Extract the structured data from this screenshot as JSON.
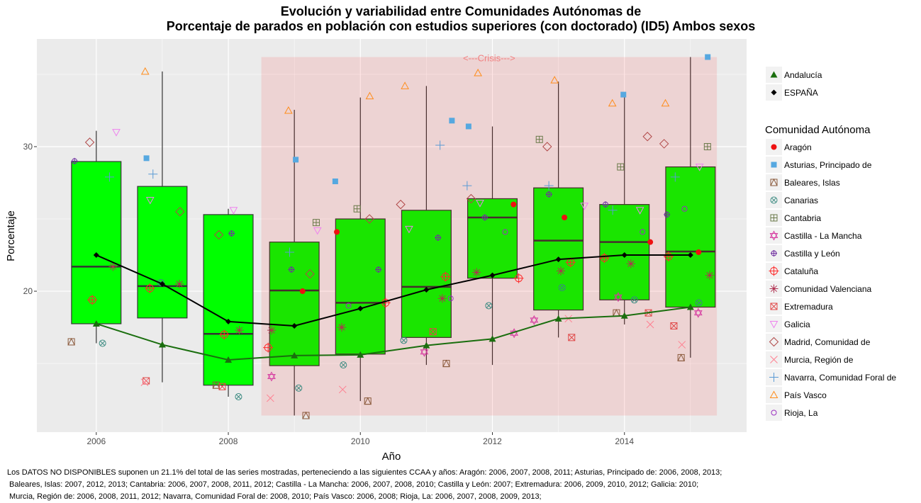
{
  "chart_data": {
    "type": "boxplot",
    "title": [
      "Evolución y variabilidad entre Comunidades Autónomas de",
      "Porcentaje de parados en población con estudios superiores (con doctorado) (ID5) Ambos sexos"
    ],
    "xlabel": "Año",
    "ylabel": "Porcentaje",
    "xlim": [
      2005.1,
      2015.85
    ],
    "ylim": [
      10.25,
      37.45
    ],
    "x_ticks": [
      2006,
      2008,
      2010,
      2012,
      2014
    ],
    "y_ticks": [
      20,
      30
    ],
    "grid": true,
    "box_fill": "#00ff00",
    "crisis": {
      "label": "<---Crisis--->",
      "from": 2008.5,
      "to": 2015.4,
      "y_from": 11.4,
      "y_to": 36.2,
      "color": "#ff0000"
    },
    "boxes": [
      {
        "year": 2006,
        "min": 16.4,
        "q1": 17.75,
        "median": 21.7,
        "q3": 28.97,
        "max": 31.1
      },
      {
        "year": 2007,
        "min": 13.7,
        "q1": 18.15,
        "median": 20.35,
        "q3": 27.25,
        "max": 35.2
      },
      {
        "year": 2008,
        "min": 12.7,
        "q1": 13.5,
        "median": 17.05,
        "q3": 25.3,
        "max": 25.7
      },
      {
        "year": 2009,
        "min": 11.4,
        "q1": 14.85,
        "median": 20.05,
        "q3": 23.4,
        "max": 32.55
      },
      {
        "year": 2010,
        "min": 12.4,
        "q1": 15.65,
        "median": 19.2,
        "q3": 25.0,
        "max": 33.4
      },
      {
        "year": 2011,
        "min": 14.9,
        "q1": 16.8,
        "median": 20.3,
        "q3": 25.6,
        "max": 34.2
      },
      {
        "year": 2012,
        "min": 14.9,
        "q1": 20.9,
        "median": 25.1,
        "q3": 26.4,
        "max": 31.4
      },
      {
        "year": 2013,
        "min": 16.8,
        "q1": 18.7,
        "median": 23.5,
        "q3": 27.15,
        "max": 34.5
      },
      {
        "year": 2014,
        "min": 17.7,
        "q1": 19.4,
        "median": 23.4,
        "q3": 26.0,
        "max": 33.6
      },
      {
        "year": 2015,
        "min": 15.4,
        "q1": 18.9,
        "median": 22.75,
        "q3": 28.6,
        "max": 36.2
      }
    ],
    "lines": [
      {
        "name": "Andalucía",
        "color": "#1a6e0e",
        "shape": "triangle-filled",
        "values": [
          17.75,
          16.3,
          15.25,
          15.55,
          15.6,
          16.25,
          16.7,
          18.1,
          18.3,
          18.9
        ]
      },
      {
        "name": "ESPAÑA",
        "color": "#000000",
        "shape": "diamond-filled",
        "values": [
          22.5,
          20.5,
          17.9,
          17.6,
          18.8,
          20.1,
          21.1,
          22.2,
          22.5,
          22.5
        ]
      }
    ],
    "years": [
      2006,
      2007,
      2008,
      2009,
      2010,
      2011,
      2012,
      2013,
      2014,
      2015
    ],
    "legend_title": "Comunidad Autónoma",
    "regions": [
      {
        "name": "Aragón",
        "color": "#ee1111",
        "shape": "circle-filled",
        "points": [
          [
            2009,
            20.0
          ],
          [
            2010,
            24.1
          ],
          [
            2012,
            26.0
          ],
          [
            2013,
            25.1
          ],
          [
            2014,
            23.4
          ],
          [
            2015,
            22.7
          ]
        ]
      },
      {
        "name": "Asturias, Principado de",
        "color": "#56a8e0",
        "shape": "square-filled",
        "points": [
          [
            2007,
            29.2
          ],
          [
            2009,
            29.1
          ],
          [
            2010,
            27.6
          ],
          [
            2011,
            31.8
          ],
          [
            2012,
            31.4
          ],
          [
            2014,
            33.6
          ],
          [
            2015,
            36.2
          ]
        ]
      },
      {
        "name": "Baleares, Islas",
        "color": "#8b5a3c",
        "shape": "square-triangle",
        "points": [
          [
            2006,
            16.5
          ],
          [
            2008,
            13.5
          ],
          [
            2009,
            11.4
          ],
          [
            2010,
            12.4
          ],
          [
            2011,
            15.0
          ],
          [
            2014,
            18.5
          ],
          [
            2015,
            15.4
          ]
        ]
      },
      {
        "name": "Canarias",
        "color": "#3a8a80",
        "shape": "circle-x",
        "points": [
          [
            2006,
            16.4
          ],
          [
            2007,
            20.6
          ],
          [
            2008,
            12.7
          ],
          [
            2009,
            13.3
          ],
          [
            2010,
            14.9
          ],
          [
            2011,
            16.6
          ],
          [
            2012,
            19.0
          ],
          [
            2013,
            20.25
          ],
          [
            2014,
            19.4
          ],
          [
            2015,
            19.2
          ]
        ]
      },
      {
        "name": "Cantabria",
        "color": "#6b7a4a",
        "shape": "square-plus",
        "points": [
          [
            2009,
            24.75
          ],
          [
            2010,
            25.7
          ],
          [
            2013,
            30.5
          ],
          [
            2014,
            28.6
          ],
          [
            2015,
            30.0
          ]
        ]
      },
      {
        "name": "Castilla - La Mancha",
        "color": "#d63ba0",
        "shape": "star-david",
        "points": [
          [
            2009,
            14.1
          ],
          [
            2011,
            15.8
          ],
          [
            2012,
            17.1
          ],
          [
            2013,
            18.0
          ],
          [
            2014,
            19.6
          ],
          [
            2015,
            18.5
          ]
        ]
      },
      {
        "name": "Castilla y León",
        "color": "#7030a0",
        "shape": "circle-plus",
        "points": [
          [
            2006,
            29.0
          ],
          [
            2008,
            24.0
          ],
          [
            2009,
            21.5
          ],
          [
            2010,
            21.5
          ],
          [
            2011,
            23.7
          ],
          [
            2012,
            25.1
          ],
          [
            2013,
            26.7
          ],
          [
            2014,
            26.0
          ],
          [
            2015,
            25.3
          ]
        ]
      },
      {
        "name": "Cataluña",
        "color": "#ff2a2a",
        "shape": "circle-cross",
        "points": [
          [
            2006,
            19.4
          ],
          [
            2007,
            20.2
          ],
          [
            2008,
            17.0
          ],
          [
            2009,
            16.1
          ],
          [
            2010,
            19.2
          ],
          [
            2011,
            21.0
          ],
          [
            2012,
            20.9
          ],
          [
            2013,
            22.0
          ],
          [
            2014,
            22.3
          ],
          [
            2015,
            22.4
          ]
        ]
      },
      {
        "name": "Comunidad Valenciana",
        "color": "#b03050",
        "shape": "asterisk",
        "points": [
          [
            2006,
            21.7
          ],
          [
            2007,
            20.5
          ],
          [
            2008,
            17.3
          ],
          [
            2009,
            17.3
          ],
          [
            2010,
            17.5
          ],
          [
            2011,
            19.5
          ],
          [
            2012,
            21.3
          ],
          [
            2013,
            21.4
          ],
          [
            2014,
            21.9
          ],
          [
            2015,
            21.1
          ]
        ]
      },
      {
        "name": "Extremadura",
        "color": "#e04848",
        "shape": "square-x",
        "points": [
          [
            2007,
            13.8
          ],
          [
            2008,
            13.4
          ],
          [
            2011,
            17.2
          ],
          [
            2013,
            16.8
          ],
          [
            2014,
            18.5
          ],
          [
            2015,
            17.6
          ]
        ]
      },
      {
        "name": "Galicia",
        "color": "#ee82ee",
        "shape": "triangle-down",
        "points": [
          [
            2006,
            31.0
          ],
          [
            2007,
            26.3
          ],
          [
            2008,
            25.6
          ],
          [
            2009,
            24.2
          ],
          [
            2011,
            24.3
          ],
          [
            2012,
            26.1
          ],
          [
            2013,
            25.9
          ],
          [
            2014,
            25.6
          ],
          [
            2015,
            28.6
          ]
        ]
      },
      {
        "name": "Madrid, Comunidad de",
        "color": "#b04848",
        "shape": "diamond",
        "points": [
          [
            2006,
            30.3
          ],
          [
            2007,
            25.5
          ],
          [
            2008,
            23.9
          ],
          [
            2009,
            21.2
          ],
          [
            2010,
            25.0
          ],
          [
            2011,
            26.0
          ],
          [
            2012,
            26.4
          ],
          [
            2013,
            30.0
          ],
          [
            2014,
            30.7
          ],
          [
            2015,
            30.2
          ]
        ]
      },
      {
        "name": "Murcia, Región de",
        "color": "#ff7f90",
        "shape": "x",
        "points": [
          [
            2007,
            13.7
          ],
          [
            2009,
            12.6
          ],
          [
            2010,
            13.2
          ],
          [
            2013,
            18.1
          ],
          [
            2014,
            17.7
          ],
          [
            2015,
            16.3
          ]
        ]
      },
      {
        "name": "Navarra, Comunidad Foral de",
        "color": "#5b9bd5",
        "shape": "plus",
        "points": [
          [
            2006,
            27.9
          ],
          [
            2007,
            28.1
          ],
          [
            2009,
            22.7
          ],
          [
            2011,
            30.1
          ],
          [
            2012,
            27.3
          ],
          [
            2013,
            27.3
          ],
          [
            2014,
            25.6
          ],
          [
            2015,
            27.9
          ]
        ]
      },
      {
        "name": "País Vasco",
        "color": "#ff8c1a",
        "shape": "triangle",
        "points": [
          [
            2007,
            35.2
          ],
          [
            2009,
            32.5
          ],
          [
            2010,
            33.5
          ],
          [
            2011,
            34.2
          ],
          [
            2012,
            35.1
          ],
          [
            2013,
            34.6
          ],
          [
            2014,
            33.0
          ],
          [
            2015,
            33.0
          ]
        ]
      },
      {
        "name": "Rioja, La",
        "color": "#9b30c0",
        "shape": "circle",
        "points": [
          [
            2010,
            19.0
          ],
          [
            2011,
            19.5
          ],
          [
            2012,
            24.1
          ],
          [
            2014,
            24.1
          ],
          [
            2015,
            25.7
          ]
        ]
      }
    ]
  },
  "footnote": [
    "Los DATOS NO DISPONIBLES suponen un 21.1% del total de las series mostradas, perteneciendo a las siguientes CCAA y años: Aragón: 2006, 2007, 2008, 2011; Asturias, Principado de: 2006, 2008, 2013;",
    " Baleares, Islas: 2007, 2012, 2013; Cantabria: 2006, 2007, 2008, 2011, 2012; Castilla - La Mancha: 2006, 2007, 2008, 2010; Castilla y León: 2007; Extremadura: 2006, 2009, 2010, 2012; Galicia: 2010;",
    " Murcia, Región de: 2006, 2008, 2011, 2012; Navarra, Comunidad Foral de: 2008, 2010; País Vasco: 2006, 2008; Rioja, La: 2006, 2007, 2008, 2009, 2013;"
  ]
}
